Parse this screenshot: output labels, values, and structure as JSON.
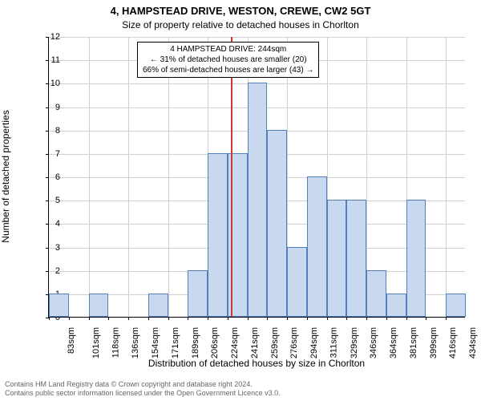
{
  "title_line1": "4, HAMPSTEAD DRIVE, WESTON, CREWE, CW2 5GT",
  "title_line2": "Size of property relative to detached houses in Chorlton",
  "y_axis_label": "Number of detached properties",
  "x_axis_label": "Distribution of detached houses by size in Chorlton",
  "annotation": {
    "line1": "4 HAMPSTEAD DRIVE: 244sqm",
    "line2": "← 31% of detached houses are smaller (20)",
    "line3": "66% of semi-detached houses are larger (43) →"
  },
  "footer_line1": "Contains HM Land Registry data © Crown copyright and database right 2024.",
  "footer_line2": "Contains public sector information licensed under the Open Government Licence v3.0.",
  "chart": {
    "type": "bar",
    "ylim": [
      0,
      12
    ],
    "ytick_step": 1,
    "bar_fill": "#c8d8ee",
    "bar_stroke": "#5080c0",
    "grid_color": "#d0d0d0",
    "marker_color": "#d43535",
    "background": "#ffffff",
    "x_tick_labels": [
      "83sqm",
      "101sqm",
      "118sqm",
      "136sqm",
      "154sqm",
      "171sqm",
      "189sqm",
      "206sqm",
      "224sqm",
      "241sqm",
      "259sqm",
      "276sqm",
      "294sqm",
      "311sqm",
      "329sqm",
      "346sqm",
      "364sqm",
      "381sqm",
      "399sqm",
      "416sqm",
      "434sqm"
    ],
    "values": [
      1,
      0,
      1,
      0,
      0,
      1,
      0,
      2,
      7,
      7,
      10,
      8,
      3,
      6,
      5,
      5,
      2,
      1,
      5,
      0,
      1
    ],
    "marker_x_value": 244,
    "x_numeric_start": 83,
    "x_numeric_step": 17.55,
    "title_fontsize": 13,
    "axis_label_fontsize": 12,
    "tick_fontsize": 11,
    "annotation_fontsize": 10,
    "footer_fontsize": 9
  }
}
